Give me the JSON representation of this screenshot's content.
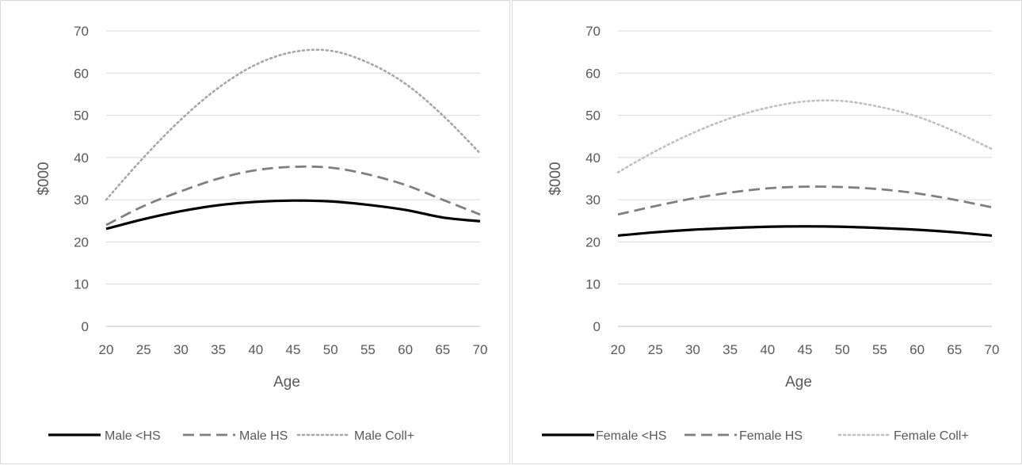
{
  "chart_data": [
    {
      "type": "line",
      "xlabel": "Age",
      "ylabel": "$000",
      "xlim": [
        20,
        70
      ],
      "ylim": [
        0,
        70
      ],
      "xticks": [
        "20",
        "25",
        "30",
        "35",
        "40",
        "45",
        "50",
        "55",
        "60",
        "65",
        "70"
      ],
      "yticks": [
        "0",
        "10",
        "20",
        "30",
        "40",
        "50",
        "60",
        "70"
      ],
      "grid": true,
      "legend": "bottom",
      "x": [
        20,
        25,
        30,
        35,
        40,
        45,
        50,
        55,
        60,
        65,
        70
      ],
      "series": [
        {
          "name": "Male <HS",
          "style": "solid",
          "color": "#000000",
          "values": [
            23.1,
            25.4,
            27.3,
            28.7,
            29.5,
            29.8,
            29.6,
            28.8,
            27.6,
            25.8,
            24.9
          ]
        },
        {
          "name": "Male HS",
          "style": "dashed",
          "color": "#7f7f7f",
          "values": [
            24.0,
            28.5,
            32.0,
            35.0,
            37.0,
            37.8,
            37.6,
            36.0,
            33.5,
            30.0,
            26.5
          ]
        },
        {
          "name": "Male Coll+",
          "style": "dotted",
          "color": "#a6a6a6",
          "values": [
            30.0,
            40.0,
            49.0,
            56.5,
            62.0,
            65.0,
            65.3,
            62.5,
            57.5,
            50.0,
            41.0
          ]
        }
      ]
    },
    {
      "type": "line",
      "xlabel": "Age",
      "ylabel": "$000",
      "xlim": [
        20,
        70
      ],
      "ylim": [
        0,
        70
      ],
      "xticks": [
        "20",
        "25",
        "30",
        "35",
        "40",
        "45",
        "50",
        "55",
        "60",
        "65",
        "70"
      ],
      "yticks": [
        "0",
        "10",
        "20",
        "30",
        "40",
        "50",
        "60",
        "70"
      ],
      "grid": true,
      "legend": "bottom",
      "x": [
        20,
        25,
        30,
        35,
        40,
        45,
        50,
        55,
        60,
        65,
        70
      ],
      "series": [
        {
          "name": "Female <HS",
          "style": "solid",
          "color": "#000000",
          "values": [
            21.5,
            22.3,
            22.9,
            23.3,
            23.6,
            23.7,
            23.6,
            23.3,
            22.9,
            22.3,
            21.5
          ]
        },
        {
          "name": "Female HS",
          "style": "dashed",
          "color": "#7f7f7f",
          "values": [
            26.5,
            28.5,
            30.3,
            31.7,
            32.7,
            33.1,
            33.0,
            32.5,
            31.5,
            30.0,
            28.2
          ]
        },
        {
          "name": "Female Coll+",
          "style": "dotted",
          "color": "#bfbfbf",
          "values": [
            36.5,
            41.5,
            45.8,
            49.3,
            51.8,
            53.3,
            53.4,
            52.0,
            49.7,
            46.2,
            42.0
          ]
        }
      ]
    }
  ]
}
